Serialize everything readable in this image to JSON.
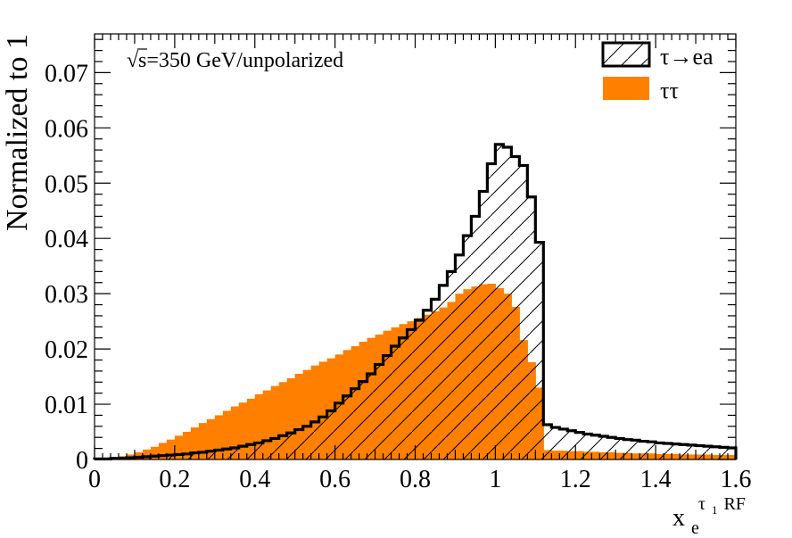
{
  "chart_data": {
    "type": "histogram",
    "ylabel": "Normalized to 1",
    "xlabel_base": "x",
    "xlabel_sub": "e",
    "xlabel_sup": "τ",
    "xlabel_sup_sub": "1",
    "xlabel_sup_tail": "RF",
    "annotation": "s=350 GeV/unpolarized",
    "annotation_root": "√",
    "xlim": [
      0,
      1.6
    ],
    "ylim": [
      0,
      0.077
    ],
    "bin_width": 0.02,
    "x_ticks": [
      "0",
      "0.2",
      "0.4",
      "0.6",
      "0.8",
      "1",
      "1.2",
      "1.4",
      "1.6"
    ],
    "y_ticks": [
      "0",
      "0.01",
      "0.02",
      "0.03",
      "0.04",
      "0.05",
      "0.06",
      "0.07"
    ],
    "legend_position": "top-right",
    "colors": {
      "signal_line": "#000000",
      "background_fill": "#ff7f00"
    },
    "series": [
      {
        "name": "τ→ea",
        "style": "hatched-outline",
        "values": [
          0.0001,
          0.0001,
          0.0002,
          0.0002,
          0.0003,
          0.0004,
          0.0005,
          0.0006,
          0.0007,
          0.0008,
          0.0009,
          0.001,
          0.0012,
          0.0013,
          0.0015,
          0.0017,
          0.0019,
          0.0021,
          0.0024,
          0.0027,
          0.003,
          0.0034,
          0.0038,
          0.0043,
          0.0048,
          0.0054,
          0.006,
          0.0068,
          0.0077,
          0.0088,
          0.0102,
          0.0115,
          0.0128,
          0.0141,
          0.0155,
          0.0172,
          0.0188,
          0.0205,
          0.022,
          0.0235,
          0.0252,
          0.027,
          0.029,
          0.0315,
          0.034,
          0.037,
          0.0405,
          0.044,
          0.0485,
          0.0535,
          0.057,
          0.0565,
          0.0548,
          0.0532,
          0.0475,
          0.0393,
          0.0063,
          0.0058,
          0.0055,
          0.0052,
          0.0049,
          0.0046,
          0.0044,
          0.0042,
          0.004,
          0.0038,
          0.0036,
          0.0035,
          0.0033,
          0.0032,
          0.003,
          0.0029,
          0.0028,
          0.0027,
          0.0026,
          0.0025,
          0.0024,
          0.0023,
          0.0022,
          0.0021
        ]
      },
      {
        "name": "ττ",
        "style": "filled",
        "values": [
          0.0001,
          0.0002,
          0.0004,
          0.0006,
          0.0009,
          0.0013,
          0.0018,
          0.0023,
          0.003,
          0.0036,
          0.0043,
          0.005,
          0.0058,
          0.0066,
          0.0073,
          0.008,
          0.0088,
          0.0096,
          0.0103,
          0.011,
          0.0118,
          0.0125,
          0.0133,
          0.014,
          0.0147,
          0.0155,
          0.0162,
          0.017,
          0.0177,
          0.0183,
          0.019,
          0.0198,
          0.0205,
          0.0213,
          0.022,
          0.0226,
          0.0233,
          0.0239,
          0.0245,
          0.025,
          0.0256,
          0.0262,
          0.0268,
          0.0275,
          0.0285,
          0.03,
          0.0308,
          0.0313,
          0.0317,
          0.0318,
          0.031,
          0.03,
          0.0276,
          0.0216,
          0.0176,
          0.013,
          0.0017,
          0.0016,
          0.0016,
          0.0015,
          0.0015,
          0.0014,
          0.0014,
          0.0013,
          0.0013,
          0.0012,
          0.0012,
          0.0011,
          0.0011,
          0.0011,
          0.001,
          0.001,
          0.001,
          0.0009,
          0.0009,
          0.0009,
          0.0009,
          0.0008,
          0.0008,
          0.0008
        ]
      }
    ]
  }
}
